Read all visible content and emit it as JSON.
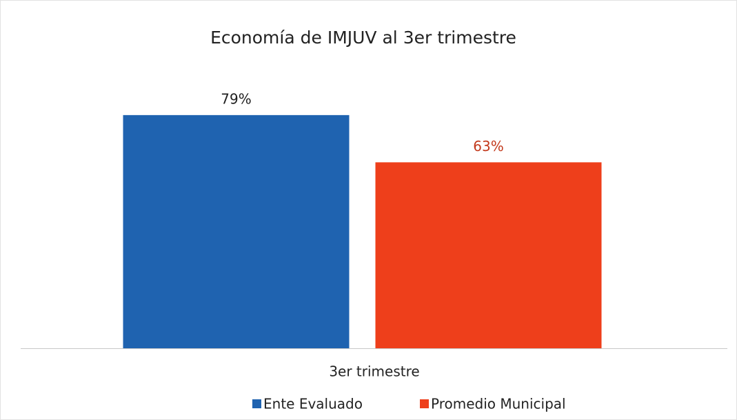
{
  "chart_data": {
    "type": "bar",
    "title": "Economía de IMJUV al 3er trimestre",
    "categories": [
      "3er trimestre"
    ],
    "series": [
      {
        "name": "Ente Evaluado",
        "color": "#1f63b0",
        "values": [
          79
        ],
        "value_labels": [
          "79%"
        ]
      },
      {
        "name": "Promedio Municipal",
        "color": "#ee3f1b",
        "values": [
          63
        ],
        "value_labels": [
          "63%"
        ]
      }
    ],
    "legend": "bottom"
  }
}
